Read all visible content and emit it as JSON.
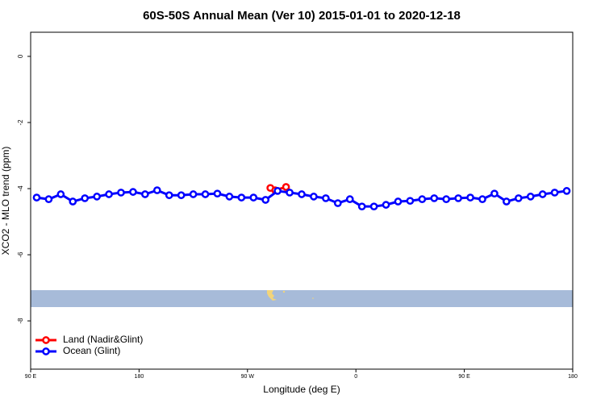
{
  "chart_data": {
    "type": "line",
    "title": "60S-50S Annual Mean (Ver 10)   2015-01-01 to 2020-12-18",
    "x_label": "Longitude (deg E)",
    "y_label": "XCO2 - MLO trend (ppm)",
    "xlim": [
      90,
      540
    ],
    "ylim": [
      -9.46,
      0.73
    ],
    "xticks": [
      {
        "value": 90,
        "label": "90 E"
      },
      {
        "value": 180,
        "label": "180"
      },
      {
        "value": 270,
        "label": "90 W"
      },
      {
        "value": 360,
        "label": "0"
      },
      {
        "value": 450,
        "label": "90 E"
      },
      {
        "value": 540,
        "label": "180"
      }
    ],
    "yticks": [
      0,
      -2,
      -4,
      -6,
      -8
    ],
    "legend": "bottom-left",
    "series": [
      {
        "name": "Land (Nadir&Glint)",
        "color": "#ff0000",
        "x": [
          289,
          293,
          302
        ],
        "values": [
          -3.98,
          -4.05,
          -3.95
        ]
      },
      {
        "name": "Ocean (Glint)",
        "color": "#0000ff",
        "x": [
          95,
          105,
          115,
          125,
          135,
          145,
          155,
          165,
          175,
          185,
          195,
          205,
          215,
          225,
          235,
          245,
          255,
          265,
          275,
          285,
          295,
          305,
          315,
          325,
          335,
          345,
          355,
          365,
          375,
          385,
          395,
          405,
          415,
          425,
          435,
          445,
          455,
          465,
          475,
          485,
          495,
          505,
          515,
          525,
          535
        ],
        "values": [
          -4.27,
          -4.32,
          -4.17,
          -4.39,
          -4.29,
          -4.24,
          -4.17,
          -4.12,
          -4.1,
          -4.17,
          -4.05,
          -4.2,
          -4.2,
          -4.17,
          -4.17,
          -4.15,
          -4.24,
          -4.27,
          -4.27,
          -4.34,
          -4.07,
          -4.12,
          -4.17,
          -4.24,
          -4.29,
          -4.44,
          -4.32,
          -4.54,
          -4.54,
          -4.49,
          -4.39,
          -4.37,
          -4.32,
          -4.29,
          -4.32,
          -4.29,
          -4.27,
          -4.32,
          -4.15,
          -4.39,
          -4.29,
          -4.24,
          -4.17,
          -4.12,
          -4.07
        ]
      }
    ]
  }
}
